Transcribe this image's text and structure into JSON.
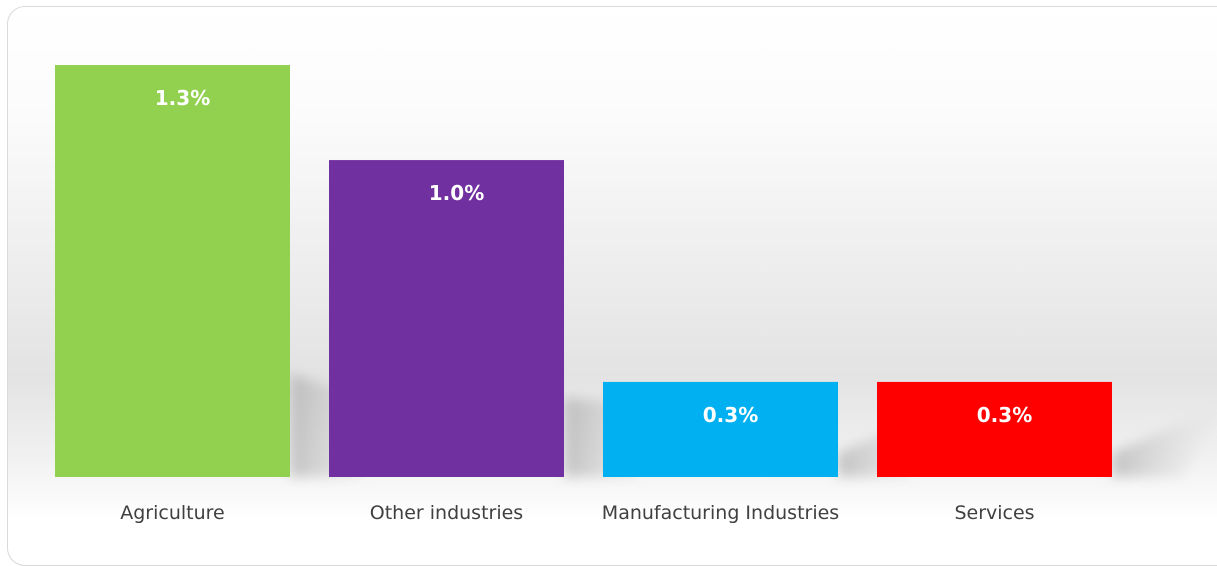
{
  "chart_data": {
    "type": "bar",
    "title": "",
    "xlabel": "",
    "ylabel": "",
    "categories": [
      "Agriculture",
      "Other industries",
      "Manufacturing Industries",
      "Services"
    ],
    "values": [
      1.3,
      1.0,
      0.3,
      0.3
    ],
    "value_labels": [
      "1.3%",
      "1.0%",
      "0.3%",
      "0.3%"
    ],
    "colors": [
      "#92D050",
      "#7030A0",
      "#00B0F0",
      "#FF0000"
    ],
    "ylim": [
      0,
      1.3
    ],
    "grid": false,
    "legend": "none"
  }
}
